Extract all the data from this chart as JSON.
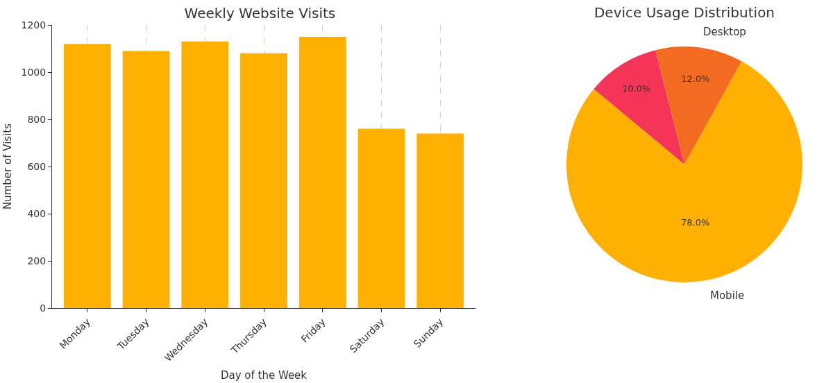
{
  "chart_data": [
    {
      "type": "bar",
      "title": "Weekly Website Visits",
      "xlabel": "Day of the Week",
      "ylabel": "Number of Visits",
      "categories": [
        "Monday",
        "Tuesday",
        "Wednesday",
        "Thursday",
        "Friday",
        "Saturday",
        "Sunday"
      ],
      "values": [
        1120,
        1090,
        1130,
        1080,
        1150,
        760,
        740
      ],
      "color": "#ffb000",
      "ylim": [
        0,
        1200
      ],
      "yticks": [
        0,
        200,
        400,
        600,
        800,
        1000,
        1200
      ],
      "grid": "x"
    },
    {
      "type": "pie",
      "title": "Device Usage Distribution",
      "categories": [
        "Mobile",
        null,
        "Desktop"
      ],
      "values": [
        78,
        10,
        12
      ],
      "value_labels": [
        "78.0%",
        "10.0%",
        "12.0%"
      ],
      "colors": [
        "#ffb000",
        "#f43557",
        "#f26b21"
      ]
    }
  ]
}
